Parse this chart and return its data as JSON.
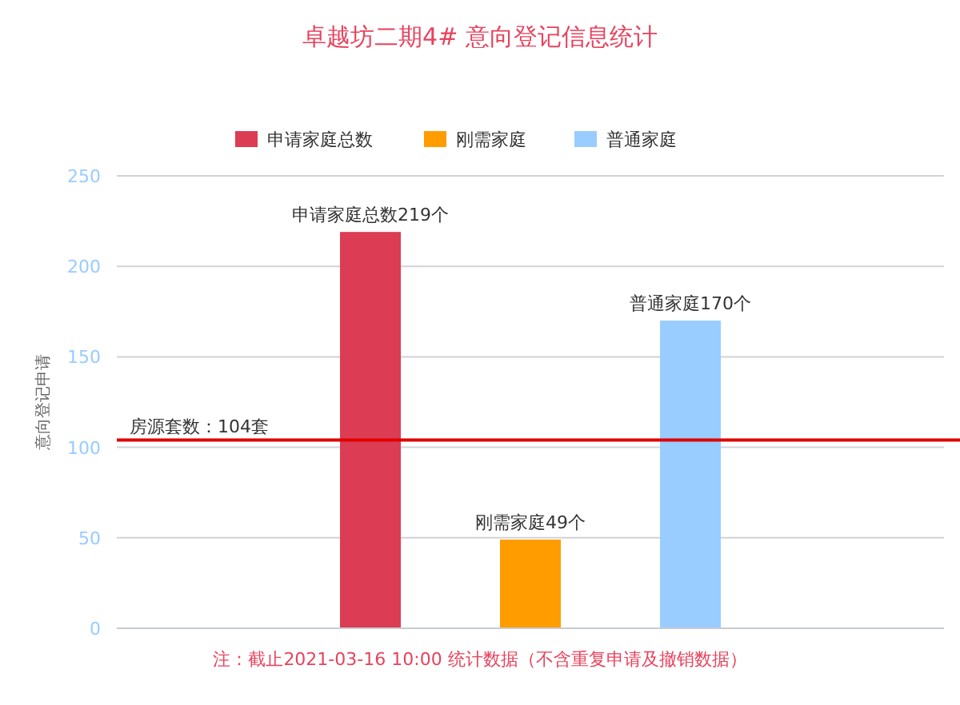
{
  "chart_data": {
    "type": "bar",
    "title": "卓越坊二期4# 意向登记信息统计",
    "ylabel": "意向登记申请",
    "categories": [
      null
    ],
    "series": [
      {
        "name": "申请家庭总数",
        "color": "#dc3c54",
        "values": [
          219
        ],
        "value_labels": [
          "申请家庭总数219个"
        ]
      },
      {
        "name": "刚需家庭",
        "color": "#ff9c00",
        "values": [
          49
        ],
        "value_labels": [
          "刚需家庭49个"
        ]
      },
      {
        "name": "普通家庭",
        "color": "#99ccff",
        "values": [
          170
        ],
        "value_labels": [
          "普通家庭170个"
        ]
      }
    ],
    "ylim": [
      0,
      250
    ],
    "yticks": [
      0,
      50,
      100,
      150,
      200,
      250
    ],
    "grid": "y",
    "legend": "top",
    "ref_lines": [
      {
        "axis": "y",
        "value": 104,
        "label": "房源套数：104套",
        "color": "#e00000"
      }
    ],
    "annotations": [
      "注：截止2021-03-16 10:00 统计数据（不含重复申请及撤销数据）"
    ]
  }
}
